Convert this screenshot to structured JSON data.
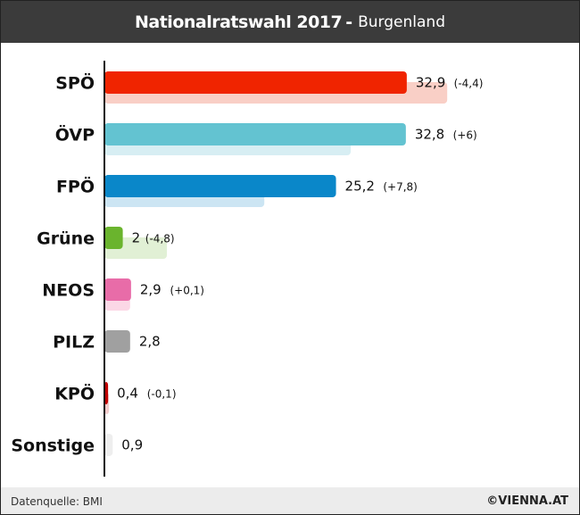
{
  "header": {
    "title_main": "Nationalratswahl 2017",
    "title_sep": "-",
    "title_sub": "Burgenland"
  },
  "footer": {
    "source": "Datenquelle: BMI",
    "brand": "©VIENNA.AT"
  },
  "chart_data": {
    "type": "bar",
    "orientation": "horizontal",
    "title": "Nationalratswahl 2017 - Burgenland",
    "categories": [
      "SPÖ",
      "ÖVP",
      "FPÖ",
      "Grüne",
      "NEOS",
      "PILZ",
      "KPÖ",
      "Sonstige"
    ],
    "series": [
      {
        "values": [
          32.9,
          32.8,
          25.2,
          2,
          2.9,
          2.8,
          0.4,
          0.9
        ],
        "value_labels": [
          "32,9",
          "32,8",
          "25,2",
          "2",
          "2,9",
          "2,8",
          "0,4",
          "0,9"
        ],
        "change_labels": [
          "(-4,4)",
          "(+6)",
          "(+7,8)",
          "(-4,8)",
          "(+0,1)",
          "",
          "(-0,1)",
          ""
        ]
      },
      {
        "values": [
          37.3,
          26.8,
          17.4,
          6.8,
          2.8,
          null,
          0.5,
          null
        ]
      }
    ],
    "colors": [
      "#f02400",
      "#63c3d1",
      "#0a87c9",
      "#6ab42d",
      "#e86ca8",
      "#a0a0a0",
      "#c00000",
      "#eeeeee"
    ],
    "prev_colors": [
      "#f9cfc6",
      "#d7eef3",
      "#cce5f3",
      "#e1f0d5",
      "#fbd7e6",
      "#e6e6e6",
      "#f2cccc",
      "#f5f5f5"
    ],
    "xlim": [
      0,
      40
    ],
    "grid": false,
    "legend": "none"
  }
}
